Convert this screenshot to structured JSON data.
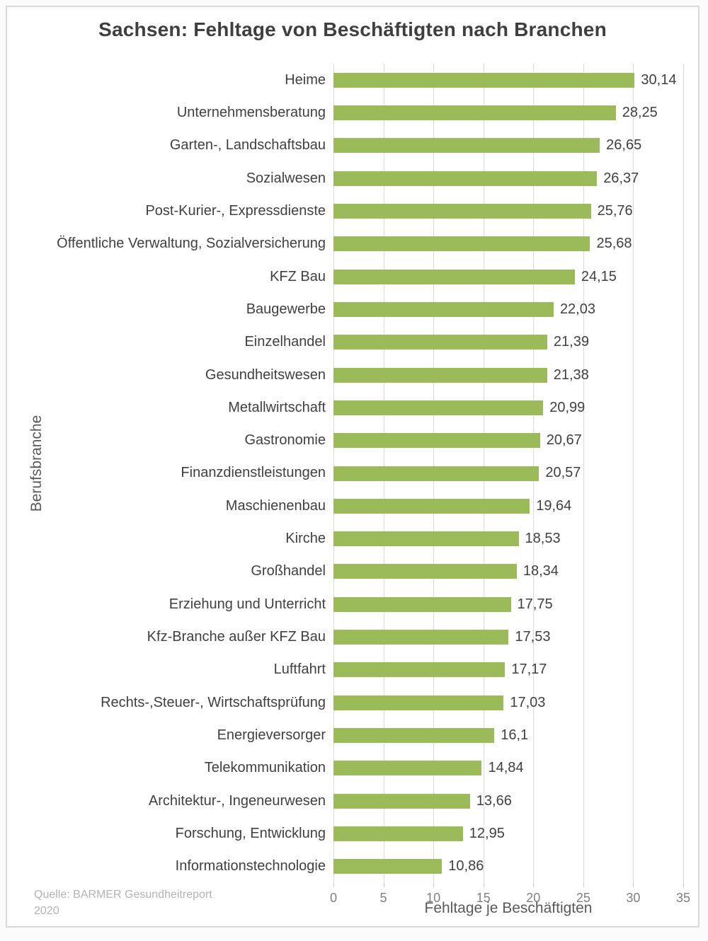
{
  "chart_data": {
    "type": "bar",
    "orientation": "horizontal",
    "title": "Sachsen: Fehltage von Beschäftigten nach Branchen",
    "xlabel": "Fehltage je Beschäftigten",
    "ylabel": "Berufsbranche",
    "xlim": [
      0,
      35
    ],
    "xticks": [
      0,
      5,
      10,
      15,
      20,
      25,
      30,
      35
    ],
    "grid": "vertical-only",
    "legend": "none",
    "bar_color": "#9bba59",
    "categories": [
      "Heime",
      "Unternehmensberatung",
      "Garten-, Landschaftsbau",
      "Sozialwesen",
      "Post-Kurier-, Expressdienste",
      "Öffentliche Verwaltung, Sozialversicherung",
      "KFZ Bau",
      "Baugewerbe",
      "Einzelhandel",
      "Gesundheitswesen",
      "Metallwirtschaft",
      "Gastronomie",
      "Finanzdienstleistungen",
      "Maschienenbau",
      "Kirche",
      "Großhandel",
      "Erziehung und Unterricht",
      "Kfz-Branche außer KFZ Bau",
      "Luftfahrt",
      "Rechts-,Steuer-, Wirtschaftsprüfung",
      "Energieversorger",
      "Telekommunikation",
      "Architektur-, Ingeneurwesen",
      "Forschung, Entwicklung",
      "Informationstechnologie"
    ],
    "values": [
      30.14,
      28.25,
      26.65,
      26.37,
      25.76,
      25.68,
      24.15,
      22.03,
      21.39,
      21.38,
      20.99,
      20.67,
      20.57,
      19.64,
      18.53,
      18.34,
      17.75,
      17.53,
      17.17,
      17.03,
      16.1,
      14.84,
      13.66,
      12.95,
      10.86
    ],
    "value_labels": [
      "30,14",
      "28,25",
      "26,65",
      "26,37",
      "25,76",
      "25,68",
      "24,15",
      "22,03",
      "21,39",
      "21,38",
      "20,99",
      "20,67",
      "20,57",
      "19,64",
      "18,53",
      "18,34",
      "17,75",
      "17,53",
      "17,17",
      "17,03",
      "16,1",
      "14,84",
      "13,66",
      "12,95",
      "10,86"
    ]
  },
  "source": {
    "line1": "Quelle: BARMER Gesundheitreport",
    "line2": "2020"
  }
}
